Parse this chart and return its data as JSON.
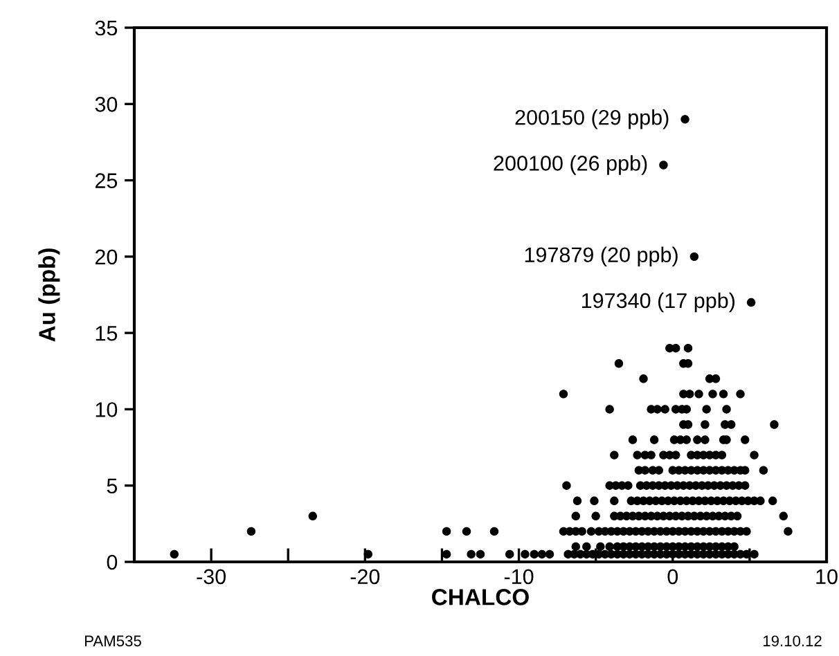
{
  "chart_data": {
    "type": "scatter",
    "xlabel": "CHALCO",
    "ylabel": "Au (ppb)",
    "xlim": [
      -35,
      10
    ],
    "ylim": [
      0,
      35
    ],
    "xticks": [
      -30,
      {
        "value": -25,
        "label": null
      },
      -20,
      {
        "value": -15,
        "label": null
      },
      -10,
      {
        "value": -5,
        "label": null
      },
      0,
      {
        "value": 5,
        "label": null
      },
      10
    ],
    "yticks": [
      0,
      5,
      10,
      15,
      20,
      25,
      30,
      35
    ],
    "grid": false,
    "marker": "circle",
    "series": [
      {
        "color": "#000000",
        "x": [
          0.8,
          -0.6,
          1.4,
          5.1,
          -32.4,
          -27.4,
          -23.4,
          -19.8,
          -14.7,
          -14.7,
          -13.4,
          -13.1,
          -12.5,
          -11.6,
          -10.6,
          -9.6,
          -0.2,
          0.2,
          1.0,
          -3.5,
          0.7,
          1.0,
          -1.9,
          2.4,
          2.8,
          -7.1,
          0.7,
          1.1,
          1.7,
          2.6,
          3.3,
          4.4,
          -4.1,
          -1.4,
          -1.0,
          -0.5,
          0.2,
          0.6,
          0.9,
          2.2,
          3.5,
          0.7,
          1.0,
          2.1,
          3.4,
          3.8,
          6.6,
          -2.6,
          -1.2,
          0.1,
          0.5,
          0.9,
          1.6,
          2.1,
          3.3,
          3.5,
          4.7,
          -3.8,
          -2.3,
          -1.8,
          -1.4,
          -0.6,
          -0.2,
          0.2,
          1.2,
          1.6,
          2.0,
          2.4,
          2.8,
          3.2,
          5.3,
          -2.2,
          -1.8,
          -1.3,
          -0.9,
          0.0,
          0.4,
          0.8,
          1.2,
          1.6,
          2.0,
          2.4,
          2.8,
          3.2,
          3.6,
          4.0,
          4.4,
          4.7,
          5.9,
          -6.9,
          -4.1,
          -3.7,
          -3.3,
          -2.9,
          -2.1,
          -1.7,
          -1.3,
          -0.9,
          -0.5,
          -0.1,
          0.3,
          0.7,
          1.1,
          1.5,
          1.9,
          2.3,
          2.7,
          3.1,
          3.5,
          3.9,
          4.3,
          4.7,
          -6.2,
          -5.1,
          -3.8,
          -2.7,
          -2.3,
          -1.9,
          -1.5,
          -1.1,
          -0.7,
          -0.3,
          0.1,
          0.5,
          0.9,
          1.3,
          1.7,
          2.1,
          2.5,
          2.9,
          3.3,
          3.7,
          4.1,
          4.5,
          4.9,
          5.3,
          5.7,
          6.5,
          -6.3,
          -5.0,
          -3.8,
          -3.4,
          -3.0,
          -2.6,
          -2.2,
          -1.8,
          -1.4,
          -1.0,
          -0.6,
          -0.2,
          0.2,
          0.6,
          1.0,
          1.4,
          1.8,
          2.2,
          2.6,
          3.0,
          3.4,
          3.8,
          4.2,
          7.2,
          -7.1,
          -6.7,
          -6.3,
          -5.9,
          -5.3,
          -4.8,
          -4.4,
          -4.0,
          -3.6,
          -3.2,
          -2.8,
          -2.4,
          -2.0,
          -1.6,
          -1.2,
          -0.8,
          -0.4,
          0.0,
          0.4,
          0.8,
          1.2,
          1.6,
          2.0,
          2.4,
          2.8,
          3.2,
          3.6,
          4.0,
          4.4,
          4.8,
          7.5,
          -6.3,
          -5.6,
          -4.7,
          -4.1,
          -3.6,
          -3.2,
          -2.8,
          -2.4,
          -2.0,
          -1.6,
          -1.2,
          -0.8,
          -0.4,
          0.0,
          0.4,
          0.8,
          1.2,
          1.6,
          2.0,
          2.4,
          2.8,
          3.2,
          3.6,
          4.0,
          -9.0,
          -8.5,
          -8.0,
          -6.8,
          -6.4,
          -6.0,
          -5.6,
          -5.2,
          -4.8,
          -4.4,
          -4.0,
          -3.6,
          -3.2,
          -2.8,
          -2.4,
          -2.0,
          -1.6,
          -1.2,
          -0.8,
          -0.4,
          0.0,
          0.4,
          0.8,
          1.2,
          1.6,
          2.0,
          2.4,
          2.8,
          3.2,
          3.6,
          4.0,
          4.4,
          4.8,
          5.3
        ],
        "values": [
          29,
          26,
          20,
          17,
          0.5,
          2,
          3,
          0.5,
          2,
          0.5,
          2,
          0.5,
          0.5,
          2,
          0.5,
          0.5,
          14,
          14,
          14,
          13,
          13,
          13,
          12,
          12,
          12,
          11,
          11,
          11,
          11,
          11,
          11,
          11,
          10,
          10,
          10,
          10,
          10,
          10,
          10,
          10,
          10,
          9,
          9,
          9,
          9,
          9,
          9,
          8,
          8,
          8,
          8,
          8,
          8,
          8,
          8,
          8,
          8,
          7,
          7,
          7,
          7,
          7,
          7,
          7,
          7,
          7,
          7,
          7,
          7,
          7,
          7,
          6,
          6,
          6,
          6,
          6,
          6,
          6,
          6,
          6,
          6,
          6,
          6,
          6,
          6,
          6,
          6,
          6,
          6,
          5,
          5,
          5,
          5,
          5,
          5,
          5,
          5,
          5,
          5,
          5,
          5,
          5,
          5,
          5,
          5,
          5,
          5,
          5,
          5,
          5,
          5,
          5,
          4,
          4,
          4,
          4,
          4,
          4,
          4,
          4,
          4,
          4,
          4,
          4,
          4,
          4,
          4,
          4,
          4,
          4,
          4,
          4,
          4,
          4,
          4,
          4,
          4,
          4,
          3,
          3,
          3,
          3,
          3,
          3,
          3,
          3,
          3,
          3,
          3,
          3,
          3,
          3,
          3,
          3,
          3,
          3,
          3,
          3,
          3,
          3,
          3,
          3,
          2,
          2,
          2,
          2,
          2,
          2,
          2,
          2,
          2,
          2,
          2,
          2,
          2,
          2,
          2,
          2,
          2,
          2,
          2,
          2,
          2,
          2,
          2,
          2,
          2,
          2,
          2,
          2,
          2,
          2,
          2,
          1,
          1,
          1,
          1,
          1,
          1,
          1,
          1,
          1,
          1,
          1,
          1,
          1,
          1,
          1,
          1,
          1,
          1,
          1,
          1,
          1,
          1,
          1,
          1,
          0.5,
          0.5,
          0.5,
          0.5,
          0.5,
          0.5,
          0.5,
          0.5,
          0.5,
          0.5,
          0.5,
          0.5,
          0.5,
          0.5,
          0.5,
          0.5,
          0.5,
          0.5,
          0.5,
          0.5,
          0.5,
          0.5,
          0.5,
          0.5,
          0.5,
          0.5,
          0.5,
          0.5,
          0.5,
          0.5,
          0.5,
          0.5,
          0.5,
          0.5
        ]
      }
    ],
    "annotations": [
      {
        "text": "200150 (29 ppb)",
        "x": 0.8,
        "y": 29
      },
      {
        "text": "200100 (26 ppb)",
        "x": -0.6,
        "y": 26
      },
      {
        "text": "197879 (20 ppb)",
        "x": 1.4,
        "y": 20
      },
      {
        "text": "197340 (17 ppb)",
        "x": 5.1,
        "y": 17
      },
      "PAM535",
      "19.10.12"
    ]
  }
}
